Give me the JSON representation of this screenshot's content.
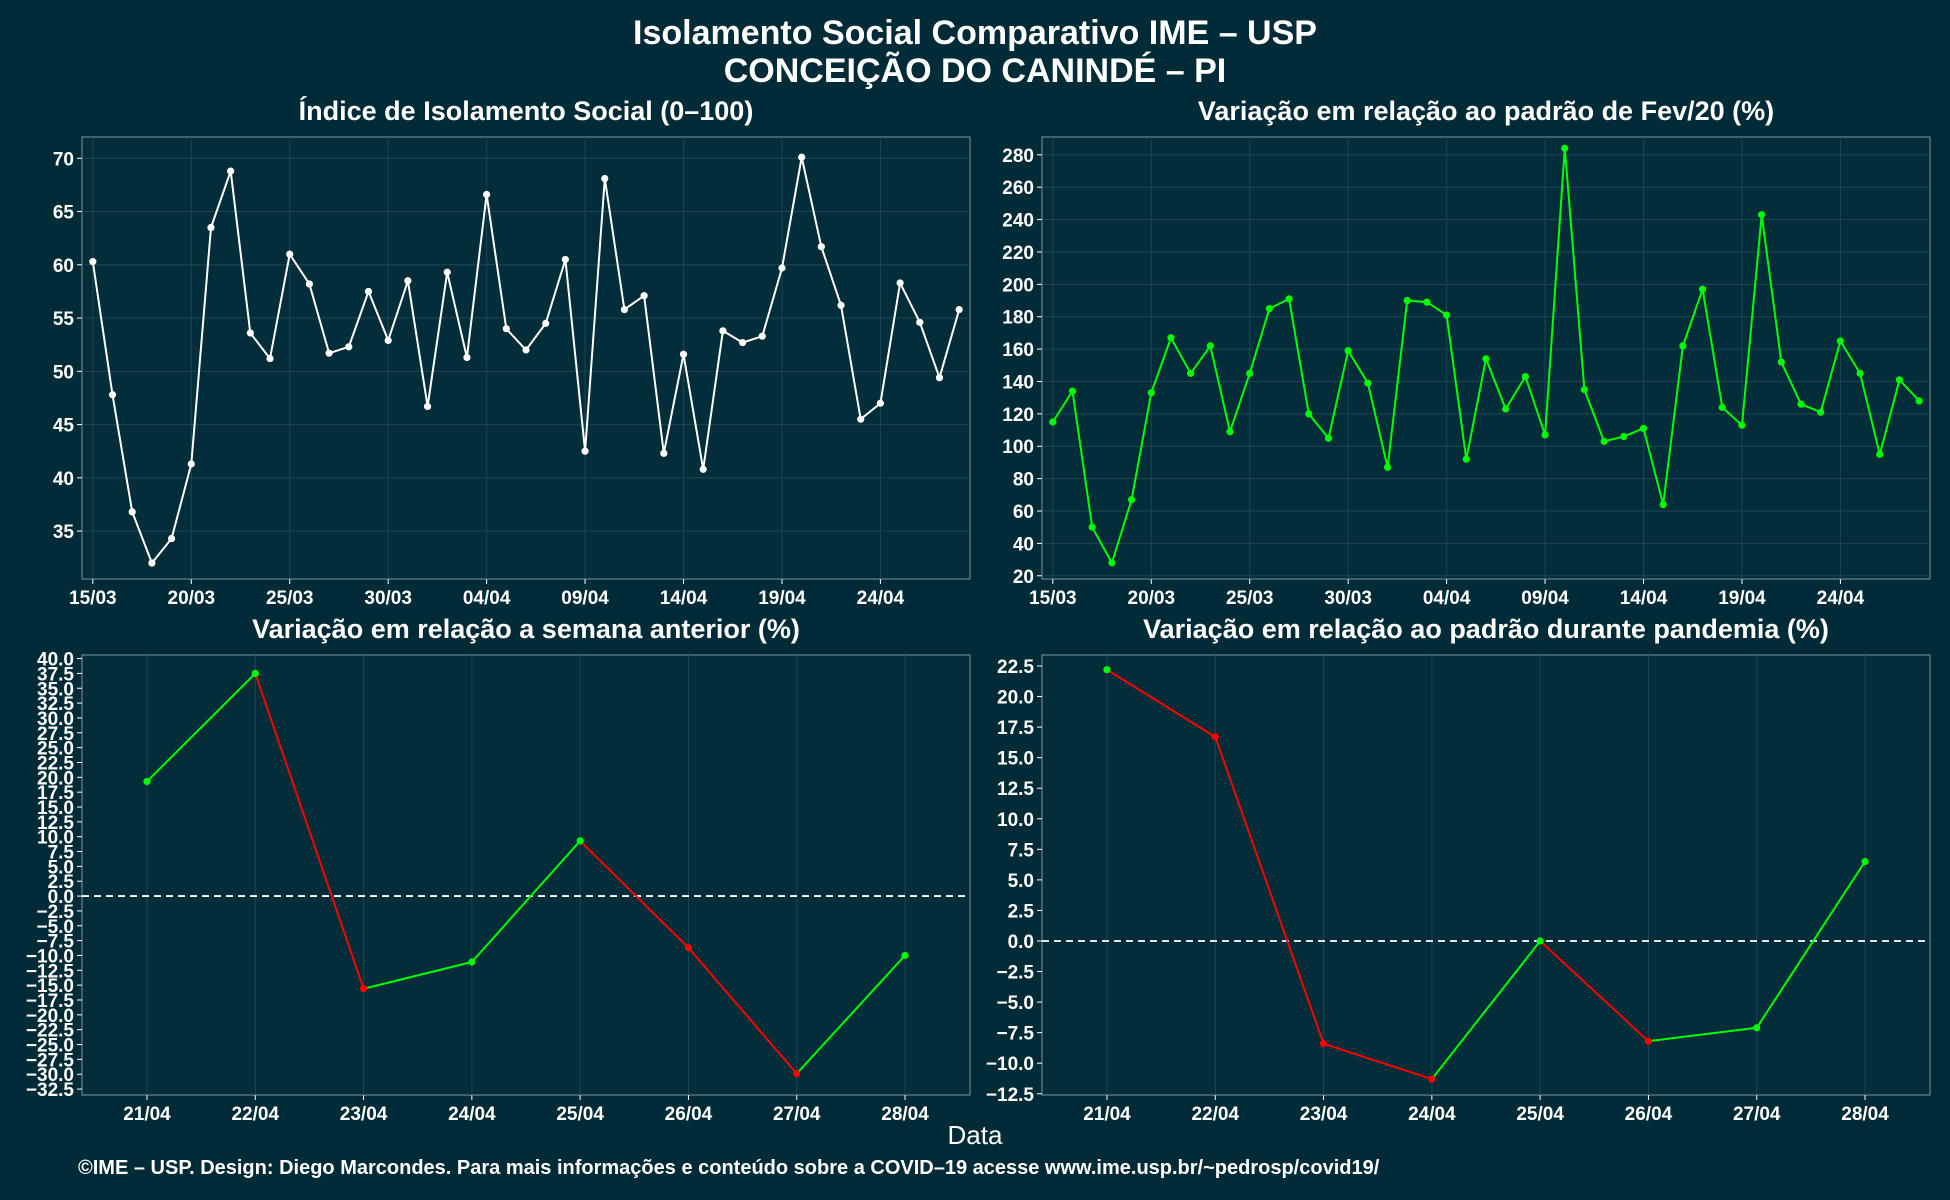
{
  "title": "Isolamento Social Comparativo IME – USP",
  "subtitle": "CONCEIÇÃO DO CANINDÉ – PI",
  "xlabel": "Data",
  "footer": "©IME – USP. Design: Diego Marcondes. Para mais informações e conteúdo sobre a COVID–19 acesse www.ime.usp.br/~pedrosp/covid19/",
  "colors": {
    "background": "#012b37",
    "panel": "#022d39",
    "white": "#ffffff",
    "green": "#00ff00",
    "red": "#ff0000",
    "grid": "#1d4652"
  },
  "chart_data": [
    {
      "type": "line",
      "title": "Índice de Isolamento Social (0–100)",
      "color": "#ffffff",
      "ylim": [
        30.5,
        72
      ],
      "yticks": [
        35,
        40,
        45,
        50,
        55,
        60,
        65,
        70
      ],
      "x_ticks": [
        "15/03",
        "20/03",
        "25/03",
        "30/03",
        "04/04",
        "09/04",
        "14/04",
        "19/04",
        "24/04"
      ],
      "x_start": "15/03",
      "x_end": "28/04",
      "values": [
        60.3,
        47.8,
        36.8,
        32.0,
        34.3,
        41.3,
        63.5,
        68.8,
        53.6,
        51.2,
        61.0,
        58.2,
        51.7,
        52.3,
        57.5,
        52.9,
        58.5,
        46.7,
        59.3,
        51.3,
        66.6,
        54.0,
        52.0,
        54.5,
        60.5,
        42.5,
        68.1,
        55.8,
        57.1,
        42.3,
        51.6,
        40.8,
        53.8,
        52.7,
        53.3,
        59.7,
        70.1,
        61.7,
        56.2,
        45.5,
        47.0,
        58.3,
        54.6,
        49.4,
        55.8
      ]
    },
    {
      "type": "line",
      "title": "Variação em relação ao padrão de Fev/20 (%)",
      "color": "#00ff00",
      "ylim": [
        18,
        291
      ],
      "yticks": [
        20,
        40,
        60,
        80,
        100,
        120,
        140,
        160,
        180,
        200,
        220,
        240,
        260,
        280
      ],
      "x_ticks": [
        "15/03",
        "20/03",
        "25/03",
        "30/03",
        "04/04",
        "09/04",
        "14/04",
        "19/04",
        "24/04"
      ],
      "x_start": "15/03",
      "x_end": "28/04",
      "values": [
        115,
        134,
        50,
        28,
        67,
        133,
        167,
        145,
        162,
        109,
        145,
        185,
        191,
        120,
        105,
        159,
        139,
        87,
        190,
        189,
        181,
        92,
        154,
        123,
        143,
        107,
        284,
        135,
        103,
        106,
        111,
        64,
        162,
        197,
        124,
        113,
        243,
        152,
        126,
        121,
        165,
        145,
        95,
        141,
        128
      ]
    },
    {
      "type": "line",
      "title": "Variação em relação a semana anterior (%)",
      "ylim": [
        -33.5,
        40.6
      ],
      "yticks": [
        -32.5,
        -30,
        -27.5,
        -25,
        -22.5,
        -20,
        -17.5,
        -15,
        -12.5,
        -10,
        -7.5,
        -5,
        -2.5,
        0,
        2.5,
        5,
        7.5,
        10,
        12.5,
        15,
        17.5,
        20,
        22.5,
        25,
        27.5,
        30,
        32.5,
        35,
        37.5,
        40
      ],
      "categories": [
        "21/04",
        "22/04",
        "23/04",
        "24/04",
        "25/04",
        "26/04",
        "27/04",
        "28/04"
      ],
      "values": [
        19.3,
        37.5,
        -15.6,
        -11.1,
        9.3,
        -8.7,
        -29.9,
        -10.0
      ],
      "reference_line": 0
    },
    {
      "type": "line",
      "title": "Variação em relação ao padrão durante pandemia (%)",
      "ylim": [
        -12.6,
        23.4
      ],
      "yticks": [
        -12.5,
        -10,
        -7.5,
        -5,
        -2.5,
        0,
        2.5,
        5,
        7.5,
        10,
        12.5,
        15,
        17.5,
        20,
        22.5
      ],
      "categories": [
        "21/04",
        "22/04",
        "23/04",
        "24/04",
        "25/04",
        "26/04",
        "27/04",
        "28/04"
      ],
      "values": [
        22.2,
        16.7,
        -8.4,
        -11.3,
        0.0,
        -8.2,
        -7.1,
        6.5
      ],
      "reference_line": 0
    }
  ]
}
